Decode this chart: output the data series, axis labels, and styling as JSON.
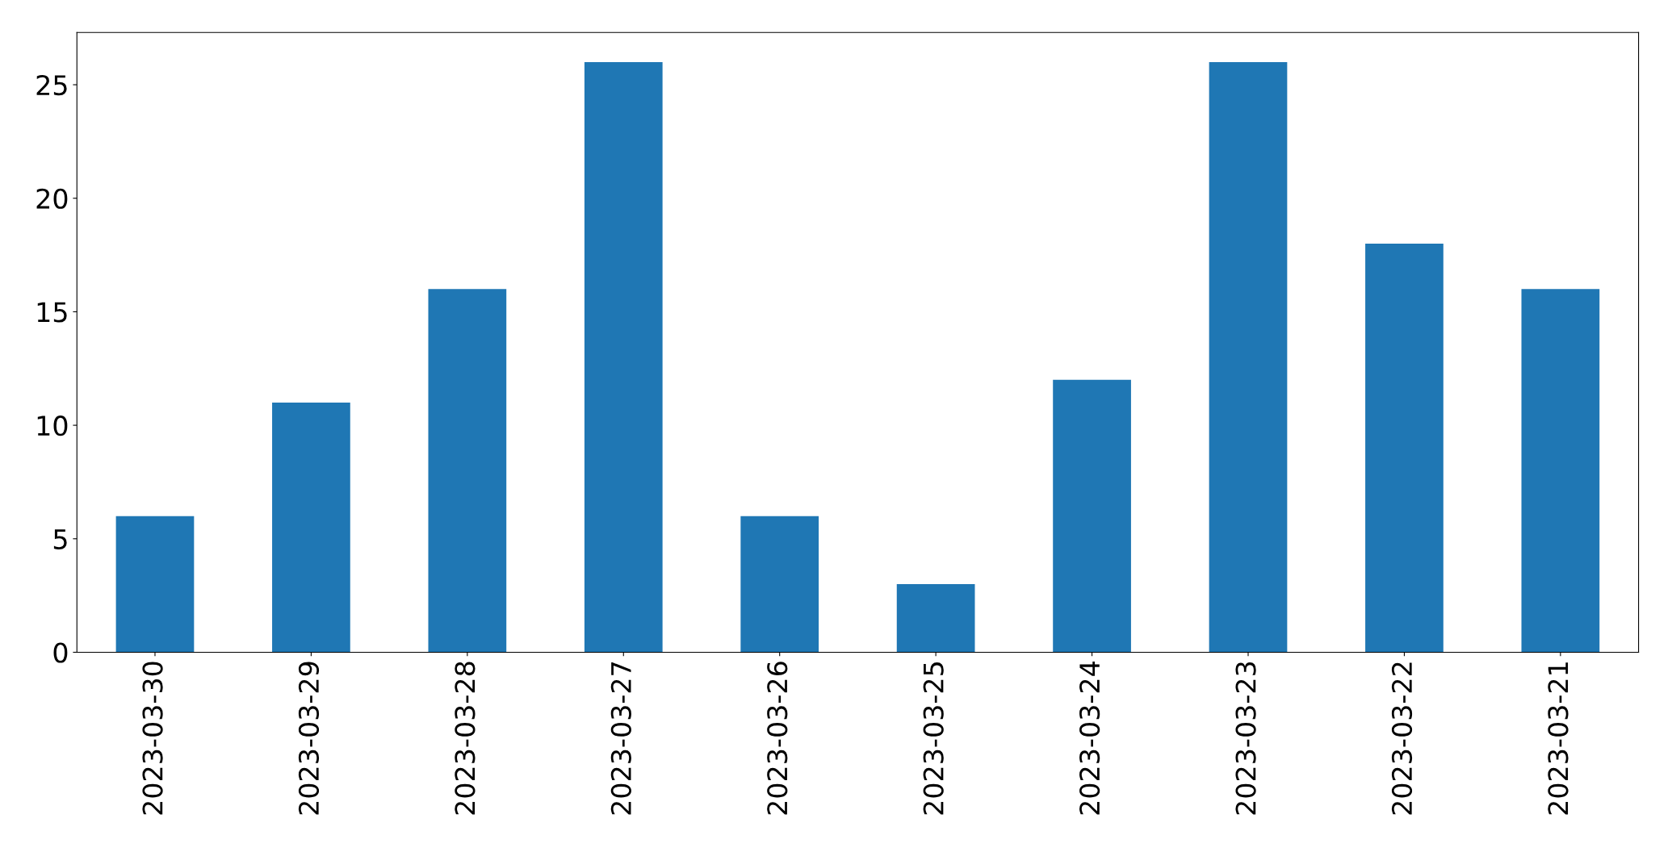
{
  "chart_data": {
    "type": "bar",
    "categories": [
      "2023-03-30",
      "2023-03-29",
      "2023-03-28",
      "2023-03-27",
      "2023-03-26",
      "2023-03-25",
      "2023-03-24",
      "2023-03-23",
      "2023-03-22",
      "2023-03-21"
    ],
    "values": [
      6,
      11,
      16,
      26,
      6,
      3,
      12,
      26,
      18,
      16
    ],
    "color": "#1f77b4",
    "ylim": [
      0,
      27.3
    ],
    "yticks": [
      0,
      5,
      10,
      15,
      20,
      25
    ],
    "grid": false,
    "legend": false
  }
}
